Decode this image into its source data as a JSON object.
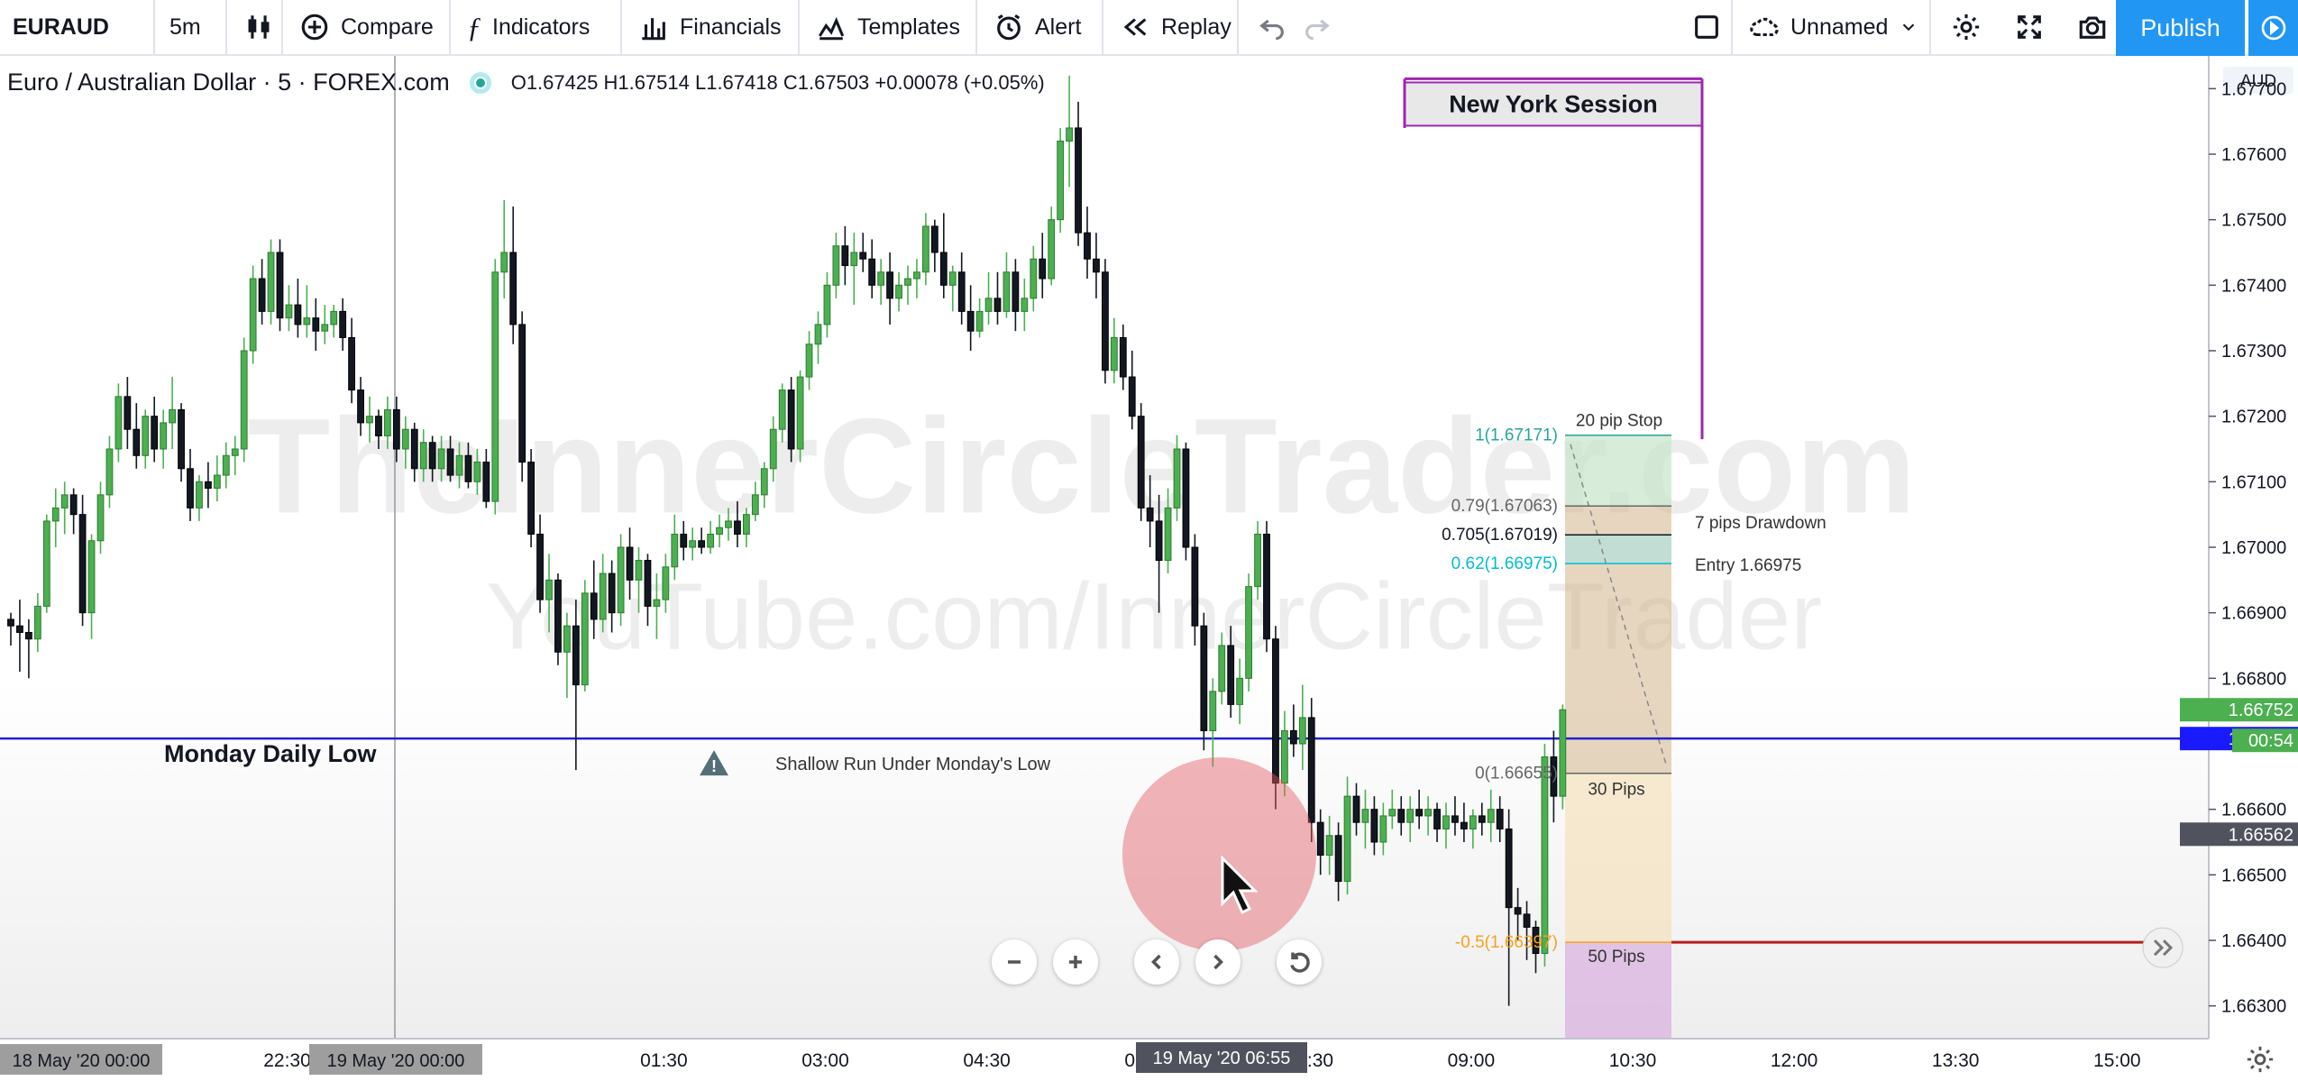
{
  "toolbar": {
    "symbol": "EURAUD",
    "interval": "5m",
    "compare": "Compare",
    "indicators": "Indicators",
    "financials": "Financials",
    "templates": "Templates",
    "alert": "Alert",
    "replay": "Replay",
    "layout_name": "Unnamed",
    "publish": "Publish"
  },
  "legend": {
    "title": "Euro / Australian Dollar",
    "interval": "5",
    "exchange": "FOREX.com",
    "ohlc": "O1.67425  H1.67514  L1.67418  C1.67503  +0.00078 (+0.05%)"
  },
  "colors": {
    "up": "#4caf50",
    "down": "#131722",
    "accent": "#2196f3",
    "session": "#9c27b0",
    "level_line": "#2222cc"
  },
  "watermark": [
    "TheInnerCircleTrader.com",
    "YouTube.com/InnerCircleTrader"
  ],
  "chart_data": {
    "type": "candlestick",
    "symbol": "EURAUD",
    "currency": "AUD",
    "ylim": [
      1.6625,
      1.6775
    ],
    "yticks": [
      "1.67700",
      "1.67600",
      "1.67500",
      "1.67400",
      "1.67300",
      "1.67200",
      "1.67100",
      "1.67000",
      "1.66900",
      "1.66800",
      "1.66700",
      "1.66600",
      "1.66500",
      "1.66400",
      "1.66300"
    ],
    "xticks": [
      {
        "label": "18 May '20    00:00",
        "bar": 0,
        "highlight": true
      },
      {
        "label": "22:30",
        "bar": 30
      },
      {
        "label": "19 May '20    00:00",
        "bar": 54,
        "highlight": true
      },
      {
        "label": "01:30",
        "bar": 72
      },
      {
        "label": "03:00",
        "bar": 90
      },
      {
        "label": "04:30",
        "bar": 108
      },
      {
        "label": "06:00",
        "bar": 126
      },
      {
        "label": "07:30",
        "bar": 144
      },
      {
        "label": "09:00",
        "bar": 162
      },
      {
        "label": "10:30",
        "bar": 180
      },
      {
        "label": "12:00",
        "bar": 198
      },
      {
        "label": "13:30",
        "bar": 216
      },
      {
        "label": "15:00",
        "bar": 234
      }
    ],
    "crosshair_time": "19 May '20    06:55",
    "candles": [
      [
        1.6689,
        1.669,
        1.6685,
        1.6688
      ],
      [
        1.6688,
        1.6692,
        1.6681,
        1.6687
      ],
      [
        1.6687,
        1.6689,
        1.668,
        1.6686
      ],
      [
        1.6686,
        1.6693,
        1.6684,
        1.6691
      ],
      [
        1.6691,
        1.6705,
        1.669,
        1.6704
      ],
      [
        1.6704,
        1.6709,
        1.67,
        1.6706
      ],
      [
        1.6706,
        1.671,
        1.6702,
        1.6708
      ],
      [
        1.6708,
        1.6709,
        1.6702,
        1.6705
      ],
      [
        1.6705,
        1.6708,
        1.6688,
        1.669
      ],
      [
        1.669,
        1.6702,
        1.6686,
        1.6701
      ],
      [
        1.6701,
        1.671,
        1.6699,
        1.6708
      ],
      [
        1.6708,
        1.6717,
        1.6706,
        1.6715
      ],
      [
        1.6715,
        1.6725,
        1.6713,
        1.6723
      ],
      [
        1.6723,
        1.6726,
        1.6715,
        1.6718
      ],
      [
        1.6718,
        1.6722,
        1.6712,
        1.6714
      ],
      [
        1.6714,
        1.6721,
        1.6712,
        1.672
      ],
      [
        1.672,
        1.6723,
        1.6713,
        1.6715
      ],
      [
        1.6715,
        1.6721,
        1.6712,
        1.6719
      ],
      [
        1.6719,
        1.6726,
        1.6715,
        1.6721
      ],
      [
        1.6721,
        1.6722,
        1.671,
        1.6712
      ],
      [
        1.6712,
        1.6715,
        1.6704,
        1.6706
      ],
      [
        1.6706,
        1.6711,
        1.6704,
        1.671
      ],
      [
        1.671,
        1.6713,
        1.6706,
        1.6709
      ],
      [
        1.6709,
        1.6714,
        1.6707,
        1.6711
      ],
      [
        1.6711,
        1.6716,
        1.6709,
        1.6714
      ],
      [
        1.6714,
        1.6717,
        1.6711,
        1.6715
      ],
      [
        1.6715,
        1.6732,
        1.6713,
        1.673
      ],
      [
        1.673,
        1.6743,
        1.6728,
        1.6741
      ],
      [
        1.6741,
        1.6744,
        1.6734,
        1.6736
      ],
      [
        1.6736,
        1.6747,
        1.6734,
        1.6745
      ],
      [
        1.6745,
        1.6747,
        1.6733,
        1.6735
      ],
      [
        1.6735,
        1.674,
        1.6733,
        1.6737
      ],
      [
        1.6737,
        1.6741,
        1.6732,
        1.6734
      ],
      [
        1.6734,
        1.674,
        1.6732,
        1.6735
      ],
      [
        1.6735,
        1.6738,
        1.673,
        1.6733
      ],
      [
        1.6733,
        1.6737,
        1.6731,
        1.6734
      ],
      [
        1.6734,
        1.6737,
        1.6732,
        1.6736
      ],
      [
        1.6736,
        1.6738,
        1.673,
        1.6732
      ],
      [
        1.6732,
        1.6735,
        1.6722,
        1.6724
      ],
      [
        1.6724,
        1.6726,
        1.6717,
        1.6719
      ],
      [
        1.6719,
        1.6723,
        1.6716,
        1.672
      ],
      [
        1.672,
        1.6721,
        1.6715,
        1.6717
      ],
      [
        1.6717,
        1.6723,
        1.6715,
        1.6721
      ],
      [
        1.6721,
        1.6723,
        1.6713,
        1.6715
      ],
      [
        1.6715,
        1.672,
        1.6712,
        1.6718
      ],
      [
        1.6718,
        1.6719,
        1.671,
        1.6712
      ],
      [
        1.6712,
        1.6718,
        1.671,
        1.6716
      ],
      [
        1.6716,
        1.6717,
        1.671,
        1.6712
      ],
      [
        1.6712,
        1.6717,
        1.671,
        1.6715
      ],
      [
        1.6715,
        1.6717,
        1.671,
        1.6711
      ],
      [
        1.6711,
        1.6716,
        1.6709,
        1.6714
      ],
      [
        1.6714,
        1.6716,
        1.6709,
        1.671
      ],
      [
        1.671,
        1.6715,
        1.6708,
        1.6713
      ],
      [
        1.6713,
        1.6715,
        1.6706,
        1.6707
      ],
      [
        1.6707,
        1.6744,
        1.6705,
        1.6742
      ],
      [
        1.6742,
        1.6753,
        1.6738,
        1.6745
      ],
      [
        1.6745,
        1.6752,
        1.6731,
        1.6734
      ],
      [
        1.6734,
        1.6736,
        1.671,
        1.6713
      ],
      [
        1.6713,
        1.6715,
        1.67,
        1.6702
      ],
      [
        1.6702,
        1.6705,
        1.669,
        1.6692
      ],
      [
        1.6692,
        1.6699,
        1.6687,
        1.6695
      ],
      [
        1.6695,
        1.6696,
        1.6682,
        1.6684
      ],
      [
        1.6684,
        1.669,
        1.6677,
        1.6688
      ],
      [
        1.6688,
        1.6692,
        1.6666,
        1.6679
      ],
      [
        1.6679,
        1.6695,
        1.6678,
        1.6693
      ],
      [
        1.6693,
        1.6698,
        1.6686,
        1.6689
      ],
      [
        1.6689,
        1.6699,
        1.6687,
        1.6696
      ],
      [
        1.6696,
        1.6698,
        1.6687,
        1.669
      ],
      [
        1.669,
        1.6702,
        1.6688,
        1.67
      ],
      [
        1.67,
        1.6703,
        1.6692,
        1.6695
      ],
      [
        1.6695,
        1.67,
        1.669,
        1.6698
      ],
      [
        1.6698,
        1.6699,
        1.6688,
        1.6691
      ],
      [
        1.6691,
        1.6696,
        1.6686,
        1.6692
      ],
      [
        1.6692,
        1.6699,
        1.669,
        1.6697
      ],
      [
        1.6697,
        1.6705,
        1.6695,
        1.6702
      ],
      [
        1.6702,
        1.6704,
        1.6698,
        1.67
      ],
      [
        1.67,
        1.6703,
        1.6698,
        1.6701
      ],
      [
        1.6701,
        1.6703,
        1.6699,
        1.67
      ],
      [
        1.67,
        1.6704,
        1.6699,
        1.6702
      ],
      [
        1.6702,
        1.6705,
        1.67,
        1.6703
      ],
      [
        1.6703,
        1.6706,
        1.6701,
        1.6704
      ],
      [
        1.6704,
        1.6707,
        1.67,
        1.6702
      ],
      [
        1.6702,
        1.6706,
        1.67,
        1.6705
      ],
      [
        1.6705,
        1.671,
        1.6704,
        1.6708
      ],
      [
        1.6708,
        1.6713,
        1.6706,
        1.6712
      ],
      [
        1.6712,
        1.672,
        1.671,
        1.6718
      ],
      [
        1.6718,
        1.6725,
        1.6716,
        1.6724
      ],
      [
        1.6724,
        1.6726,
        1.6713,
        1.6715
      ],
      [
        1.6715,
        1.6727,
        1.6713,
        1.6726
      ],
      [
        1.6726,
        1.6733,
        1.6724,
        1.6731
      ],
      [
        1.6731,
        1.6736,
        1.6728,
        1.6734
      ],
      [
        1.6734,
        1.6742,
        1.6732,
        1.674
      ],
      [
        1.674,
        1.6748,
        1.6738,
        1.6746
      ],
      [
        1.6746,
        1.6749,
        1.674,
        1.6743
      ],
      [
        1.6743,
        1.6748,
        1.6737,
        1.6745
      ],
      [
        1.6745,
        1.6748,
        1.6742,
        1.6744
      ],
      [
        1.6744,
        1.6747,
        1.6738,
        1.674
      ],
      [
        1.674,
        1.6744,
        1.6737,
        1.6742
      ],
      [
        1.6742,
        1.6745,
        1.6734,
        1.6738
      ],
      [
        1.6738,
        1.6742,
        1.6736,
        1.674
      ],
      [
        1.674,
        1.6743,
        1.6737,
        1.6741
      ],
      [
        1.6741,
        1.6744,
        1.6738,
        1.6742
      ],
      [
        1.6742,
        1.6751,
        1.674,
        1.6749
      ],
      [
        1.6749,
        1.675,
        1.6742,
        1.6745
      ],
      [
        1.6745,
        1.6751,
        1.6738,
        1.674
      ],
      [
        1.674,
        1.6743,
        1.6736,
        1.6742
      ],
      [
        1.6742,
        1.6745,
        1.6734,
        1.6736
      ],
      [
        1.6736,
        1.674,
        1.673,
        1.6733
      ],
      [
        1.6733,
        1.6738,
        1.6732,
        1.6736
      ],
      [
        1.6736,
        1.6742,
        1.6734,
        1.6738
      ],
      [
        1.6738,
        1.6742,
        1.6734,
        1.6736
      ],
      [
        1.6736,
        1.6745,
        1.6735,
        1.6742
      ],
      [
        1.6742,
        1.6744,
        1.6733,
        1.6736
      ],
      [
        1.6736,
        1.6741,
        1.6733,
        1.6738
      ],
      [
        1.6738,
        1.6746,
        1.6736,
        1.6744
      ],
      [
        1.6744,
        1.6748,
        1.6738,
        1.6741
      ],
      [
        1.6741,
        1.6752,
        1.674,
        1.675
      ],
      [
        1.675,
        1.6764,
        1.6748,
        1.6762
      ],
      [
        1.6762,
        1.6772,
        1.6755,
        1.6764
      ],
      [
        1.6764,
        1.6768,
        1.6746,
        1.6748
      ],
      [
        1.6748,
        1.6752,
        1.6741,
        1.6744
      ],
      [
        1.6744,
        1.6748,
        1.6738,
        1.6742
      ],
      [
        1.6742,
        1.6744,
        1.6725,
        1.6727
      ],
      [
        1.6727,
        1.6735,
        1.6725,
        1.6732
      ],
      [
        1.6732,
        1.6734,
        1.6724,
        1.6726
      ],
      [
        1.6726,
        1.673,
        1.6718,
        1.672
      ],
      [
        1.672,
        1.6722,
        1.6704,
        1.6706
      ],
      [
        1.6706,
        1.6711,
        1.67,
        1.6704
      ],
      [
        1.6704,
        1.6708,
        1.669,
        1.6698
      ],
      [
        1.6698,
        1.6709,
        1.6696,
        1.6706
      ],
      [
        1.6706,
        1.67171,
        1.6704,
        1.6715
      ],
      [
        1.6715,
        1.6716,
        1.6698,
        1.67
      ],
      [
        1.67,
        1.6702,
        1.6685,
        1.6688
      ],
      [
        1.6688,
        1.669,
        1.6669,
        1.6672
      ],
      [
        1.6672,
        1.668,
        1.66665,
        1.6678
      ],
      [
        1.6678,
        1.6687,
        1.6676,
        1.6685
      ],
      [
        1.6685,
        1.6688,
        1.6674,
        1.6676
      ],
      [
        1.6676,
        1.6683,
        1.6673,
        1.668
      ],
      [
        1.668,
        1.6696,
        1.6678,
        1.6694
      ],
      [
        1.6694,
        1.6704,
        1.6692,
        1.6702
      ],
      [
        1.6702,
        1.6704,
        1.6684,
        1.6686
      ],
      [
        1.6686,
        1.6688,
        1.666,
        1.6664
      ],
      [
        1.6664,
        1.6675,
        1.6662,
        1.6672
      ],
      [
        1.6672,
        1.6676,
        1.6668,
        1.667
      ],
      [
        1.667,
        1.6679,
        1.6666,
        1.6674
      ],
      [
        1.6674,
        1.6677,
        1.6655,
        1.6658
      ],
      [
        1.6658,
        1.666,
        1.665,
        1.6653
      ],
      [
        1.6653,
        1.6659,
        1.665,
        1.6656
      ],
      [
        1.6656,
        1.6658,
        1.6646,
        1.6649
      ],
      [
        1.6649,
        1.6665,
        1.6647,
        1.6662
      ],
      [
        1.6662,
        1.6664,
        1.6656,
        1.6658
      ],
      [
        1.6658,
        1.6663,
        1.6654,
        1.666
      ],
      [
        1.666,
        1.6662,
        1.6653,
        1.6655
      ],
      [
        1.6655,
        1.6661,
        1.6653,
        1.6659
      ],
      [
        1.6659,
        1.6663,
        1.6657,
        1.666
      ],
      [
        1.666,
        1.6662,
        1.6656,
        1.6658
      ],
      [
        1.6658,
        1.6662,
        1.6655,
        1.666
      ],
      [
        1.666,
        1.6663,
        1.6657,
        1.6659
      ],
      [
        1.6659,
        1.6662,
        1.6656,
        1.666
      ],
      [
        1.666,
        1.6661,
        1.6655,
        1.6657
      ],
      [
        1.6657,
        1.6661,
        1.6654,
        1.6659
      ],
      [
        1.6659,
        1.6662,
        1.6656,
        1.6658
      ],
      [
        1.6658,
        1.6661,
        1.6655,
        1.6657
      ],
      [
        1.6657,
        1.666,
        1.6654,
        1.6659
      ],
      [
        1.6659,
        1.6661,
        1.6656,
        1.6658
      ],
      [
        1.6658,
        1.6663,
        1.6655,
        1.666
      ],
      [
        1.666,
        1.6662,
        1.6655,
        1.6657
      ],
      [
        1.6657,
        1.666,
        1.663,
        1.6645
      ],
      [
        1.6645,
        1.6648,
        1.664,
        1.6644
      ],
      [
        1.6644,
        1.6646,
        1.6637,
        1.6642
      ],
      [
        1.6642,
        1.6643,
        1.6635,
        1.6638
      ],
      [
        1.6638,
        1.667,
        1.6636,
        1.6668
      ],
      [
        1.6668,
        1.6672,
        1.6658,
        1.6662
      ],
      [
        1.6662,
        1.6676,
        1.666,
        1.66752
      ]
    ],
    "levels": [
      {
        "label": "Monday Daily Low",
        "price": 1.66708
      }
    ],
    "annotations": [
      {
        "text": "Shallow Run Under Monday's Low",
        "price": 1.66665,
        "bar": 84
      },
      {
        "text": "20 pip Stop",
        "price": 1.67171,
        "bar": 150
      },
      {
        "text": "7 pips Drawdown",
        "price": 1.6704,
        "bar": 156
      },
      {
        "text": "Entry 1.66975",
        "price": 1.66975,
        "bar": 156
      },
      {
        "text": "30 Pips",
        "price": 1.6666,
        "bar": 150
      },
      {
        "text": "50 Pips",
        "price": 1.66397,
        "bar": 150
      },
      {
        "text": "New York Session",
        "bar": 160
      }
    ],
    "session_box": {
      "label": "New York Session",
      "start_bar": 156,
      "end_bar": 189
    },
    "fib": {
      "start_bar": 146,
      "levels": [
        {
          "label": "1(1.67171)",
          "price": 1.67171,
          "color": "#26a69a"
        },
        {
          "label": "0.79(1.67063)",
          "price": 1.67063,
          "color": "#666"
        },
        {
          "label": "0.705(1.67019)",
          "price": 1.67019,
          "color": "#131722"
        },
        {
          "label": "0.62(1.66975)",
          "price": 1.66975,
          "color": "#00bcd4"
        },
        {
          "label": "0(1.66655)",
          "price": 1.66655,
          "color": "#666"
        },
        {
          "label": "-0.5(1.66397)",
          "price": 1.66397,
          "color": "#f7a21b"
        }
      ]
    },
    "price_tags": [
      {
        "price": 1.66752,
        "label": "1.66752",
        "color": "#4caf50"
      },
      {
        "price": 1.66708,
        "label": "1.66708",
        "color": "#1a1aff"
      },
      {
        "price": 1.66562,
        "label": "1.66562",
        "color": "#50535e"
      }
    ],
    "countdown": "00:54"
  }
}
